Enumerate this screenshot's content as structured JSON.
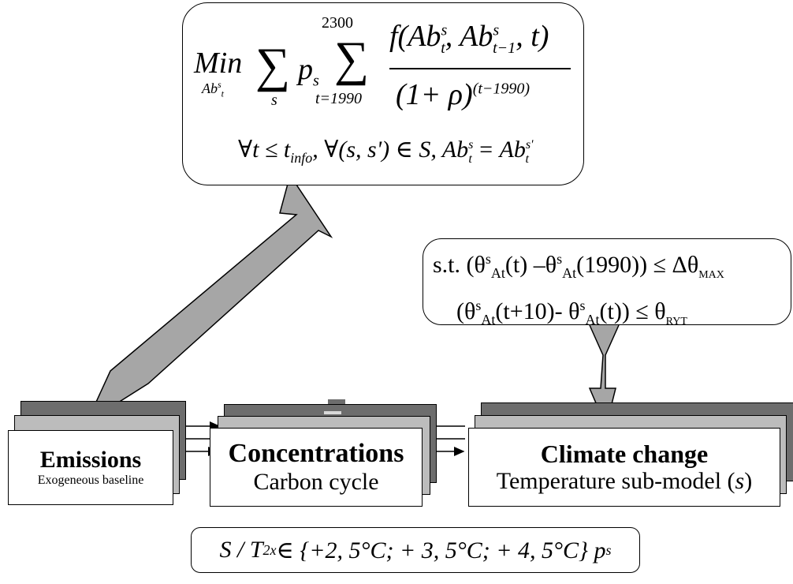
{
  "objective": {
    "min_label": "Min",
    "min_subscript": "Ab",
    "min_subscript_sup": "s",
    "min_subscript_sub": "t",
    "sum_index_s": "s",
    "p_s": "p",
    "p_sub": "s",
    "sum_upper": "2300",
    "sum_lower": "t=1990",
    "numerator": "f(Ab",
    "num_sup1": "s",
    "num_sub1": "t",
    "num_mid": ", Ab",
    "num_sup2": "s",
    "num_sub2": "t−1",
    "num_end": ", t)",
    "denominator": "(1+ ρ)",
    "den_exp": "(t−1990)",
    "condition_1": "∀t ≤ t",
    "condition_1_sub": "info",
    "condition_2": ",  ∀(s, s') ∈ S,  Ab",
    "cond_sup1": "s",
    "cond_sub1": "t",
    "cond_eq": " = Ab",
    "cond_sup2": "s'",
    "cond_sub2": "t"
  },
  "constraint": {
    "line1_a": "s.t. (θ",
    "line1_sup1": "s",
    "line1_sub1": "At",
    "line1_b": "(t) –θ",
    "line1_sup2": "s",
    "line1_sub2": "At",
    "line1_c": "(1990)) ≤  Δθ",
    "line1_sub3": "MAX",
    "line2_a": "(θ",
    "line2_sup1": "s",
    "line2_sub1": "At",
    "line2_b": "(t+10)- θ",
    "line2_sup2": "s",
    "line2_sub2": "At",
    "line2_c": "(t)) ≤  θ",
    "line2_sub3": "RYT"
  },
  "modules": [
    {
      "title": "Emissions",
      "subtitle": "Exogeneous baseline"
    },
    {
      "title": "Concentrations",
      "subtitle": "Carbon cycle"
    },
    {
      "title": "Climate change",
      "subtitle_pre": "Temperature sub-model (",
      "subtitle_var": "s",
      "subtitle_post": ")"
    }
  ],
  "scenario": {
    "text_pre": "S /  T",
    "sub": "2x",
    "text_set": " ∈ {+2, 5°C; + 3, 5°C; + 4, 5°C}   p",
    "p_sub": "s"
  },
  "colors": {
    "arrow_fill": "#a6a6a6",
    "stack_back": "#6d6d6d",
    "stack_mid": "#bcbcbc",
    "border": "#000000",
    "background": "#ffffff"
  }
}
